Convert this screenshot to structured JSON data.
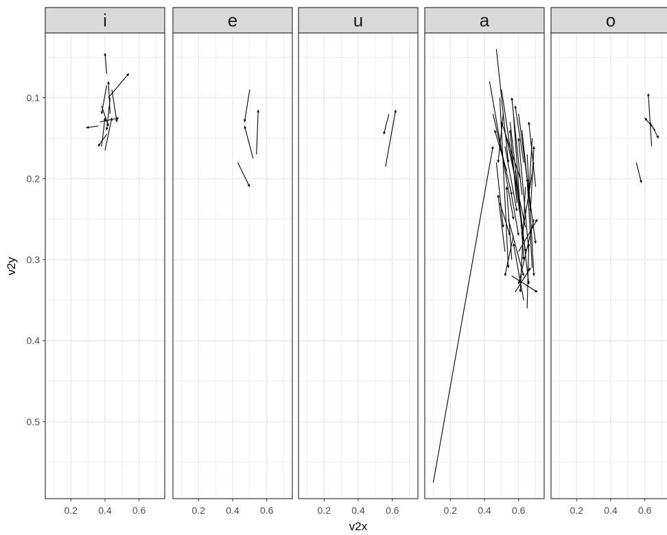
{
  "chart_data": {
    "type": "vector-field",
    "xlabel": "v2x",
    "ylabel": "v2y",
    "xlim": [
      0.05,
      0.75
    ],
    "ylim": [
      0.02,
      0.595
    ],
    "y_reversed": true,
    "x_ticks": [
      0.2,
      0.4,
      0.6
    ],
    "x_tick_labels": [
      "0.2",
      "0.4",
      "0.6"
    ],
    "y_ticks": [
      0.1,
      0.2,
      0.3,
      0.4,
      0.5
    ],
    "y_tick_labels": [
      "0.1",
      "0.2",
      "0.3",
      "0.4",
      "0.5"
    ],
    "grid": true,
    "colors": {
      "strip_bg": "#d9d9d9",
      "border": "#333333",
      "grid": "#ebebeb",
      "arrow": "#000000"
    },
    "panels": [
      {
        "name": "i",
        "segments": [
          [
            0.41,
            0.07,
            0.4,
            0.045
          ],
          [
            0.42,
            0.1,
            0.54,
            0.07
          ],
          [
            0.43,
            0.12,
            0.42,
            0.08
          ],
          [
            0.44,
            0.09,
            0.47,
            0.13
          ],
          [
            0.38,
            0.11,
            0.42,
            0.135
          ],
          [
            0.36,
            0.135,
            0.29,
            0.137
          ],
          [
            0.41,
            0.145,
            0.36,
            0.16
          ],
          [
            0.4,
            0.165,
            0.44,
            0.125
          ],
          [
            0.37,
            0.13,
            0.48,
            0.125
          ],
          [
            0.43,
            0.1,
            0.41,
            0.14
          ],
          [
            0.38,
            0.16,
            0.4,
            0.125
          ],
          [
            0.41,
            0.085,
            0.38,
            0.12
          ]
        ]
      },
      {
        "name": "e",
        "segments": [
          [
            0.5,
            0.09,
            0.47,
            0.13
          ],
          [
            0.52,
            0.175,
            0.47,
            0.135
          ],
          [
            0.54,
            0.17,
            0.55,
            0.115
          ],
          [
            0.43,
            0.18,
            0.5,
            0.21
          ]
        ]
      },
      {
        "name": "u",
        "segments": [
          [
            0.58,
            0.12,
            0.55,
            0.145
          ],
          [
            0.56,
            0.185,
            0.62,
            0.115
          ]
        ]
      },
      {
        "name": "a",
        "segments": [
          [
            0.1,
            0.575,
            0.45,
            0.16
          ],
          [
            0.47,
            0.04,
            0.54,
            0.18
          ],
          [
            0.43,
            0.08,
            0.57,
            0.25
          ],
          [
            0.49,
            0.1,
            0.54,
            0.31
          ],
          [
            0.52,
            0.16,
            0.59,
            0.24
          ],
          [
            0.45,
            0.12,
            0.56,
            0.22
          ],
          [
            0.5,
            0.09,
            0.62,
            0.26
          ],
          [
            0.57,
            0.12,
            0.63,
            0.3
          ],
          [
            0.55,
            0.13,
            0.66,
            0.33
          ],
          [
            0.6,
            0.12,
            0.7,
            0.28
          ],
          [
            0.62,
            0.14,
            0.67,
            0.24
          ],
          [
            0.68,
            0.15,
            0.66,
            0.22
          ],
          [
            0.69,
            0.18,
            0.62,
            0.27
          ],
          [
            0.58,
            0.19,
            0.64,
            0.29
          ],
          [
            0.65,
            0.17,
            0.69,
            0.32
          ],
          [
            0.69,
            0.25,
            0.6,
            0.33
          ],
          [
            0.63,
            0.35,
            0.57,
            0.28
          ],
          [
            0.56,
            0.32,
            0.71,
            0.34
          ],
          [
            0.54,
            0.25,
            0.63,
            0.32
          ],
          [
            0.52,
            0.29,
            0.48,
            0.22
          ],
          [
            0.59,
            0.23,
            0.55,
            0.14
          ],
          [
            0.61,
            0.2,
            0.5,
            0.13
          ],
          [
            0.64,
            0.26,
            0.53,
            0.15
          ],
          [
            0.66,
            0.29,
            0.6,
            0.15
          ],
          [
            0.67,
            0.24,
            0.69,
            0.16
          ],
          [
            0.56,
            0.3,
            0.53,
            0.21
          ],
          [
            0.6,
            0.29,
            0.71,
            0.25
          ],
          [
            0.65,
            0.36,
            0.66,
            0.28
          ],
          [
            0.58,
            0.34,
            0.67,
            0.31
          ],
          [
            0.47,
            0.18,
            0.51,
            0.26
          ],
          [
            0.53,
            0.19,
            0.46,
            0.14
          ],
          [
            0.62,
            0.22,
            0.56,
            0.1
          ],
          [
            0.49,
            0.23,
            0.55,
            0.27
          ],
          [
            0.57,
            0.27,
            0.52,
            0.32
          ],
          [
            0.64,
            0.21,
            0.61,
            0.34
          ],
          [
            0.68,
            0.31,
            0.65,
            0.2
          ],
          [
            0.7,
            0.21,
            0.66,
            0.13
          ],
          [
            0.51,
            0.12,
            0.48,
            0.18
          ],
          [
            0.63,
            0.18,
            0.58,
            0.11
          ],
          [
            0.55,
            0.21,
            0.6,
            0.27
          ]
        ]
      },
      {
        "name": "o",
        "segments": [
          [
            0.63,
            0.13,
            0.68,
            0.15
          ],
          [
            0.64,
            0.16,
            0.62,
            0.095
          ],
          [
            0.66,
            0.14,
            0.6,
            0.125
          ],
          [
            0.55,
            0.18,
            0.58,
            0.205
          ]
        ]
      }
    ]
  }
}
